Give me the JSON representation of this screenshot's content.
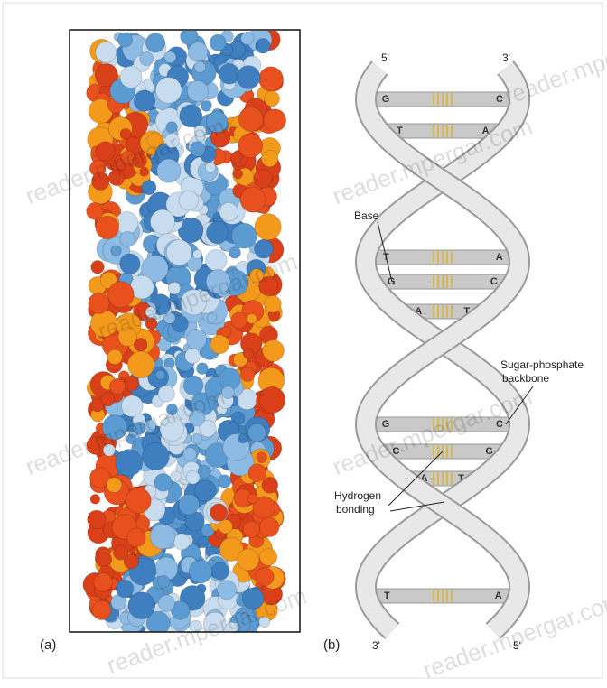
{
  "panel_a": {
    "label": "(a)"
  },
  "panel_b": {
    "label": "(b)",
    "top_left": "5'",
    "top_right": "3'",
    "bottom_left": "3'",
    "bottom_right": "5'",
    "labels": {
      "base": "Base",
      "backbone": [
        "Sugar-phosphate",
        "backbone"
      ],
      "hydrogen": [
        "Hydrogen",
        "bonding"
      ]
    },
    "pairs": [
      [
        "G",
        "C"
      ],
      [
        "T",
        "A"
      ],
      [
        "T",
        "A"
      ],
      [
        "G",
        "C"
      ],
      [
        "A",
        "T"
      ],
      [
        "G",
        "C"
      ],
      [
        "C",
        "G"
      ],
      [
        "A",
        "T"
      ],
      [
        "T",
        "A"
      ]
    ]
  },
  "watermark": "reader.mpergar.com"
}
